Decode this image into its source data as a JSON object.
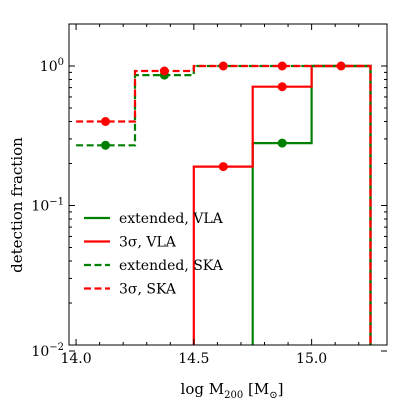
{
  "chart_data": {
    "type": "line",
    "xlabel": "log M₂₀₀ [M☉]",
    "xlabel_main": "log M",
    "xlabel_sub": "200",
    "xlabel_unit_open": " [M",
    "xlabel_unit_sub": "⊙",
    "xlabel_unit_close": "]",
    "ylabel": "detection fraction",
    "xlim": [
      13.97,
      15.32
    ],
    "ylim": [
      0.01,
      2.0
    ],
    "yscale": "log",
    "x_ticks": [
      14.0,
      14.5,
      15.0
    ],
    "x_tick_labels": [
      "14.0",
      "14.5",
      "15.0"
    ],
    "y_ticks": [
      0.01,
      0.1,
      1.0
    ],
    "y_tick_labels": [
      {
        "base": "10",
        "exp": "−2"
      },
      {
        "base": "10",
        "exp": "−1"
      },
      {
        "base": "10",
        "exp": "0"
      }
    ],
    "legend_position": "lower-left",
    "bin_edges": [
      14.0,
      14.25,
      14.5,
      14.75,
      15.0,
      15.25
    ],
    "bin_centers": [
      14.125,
      14.375,
      14.625,
      14.875,
      15.125
    ],
    "series": [
      {
        "name": "extended, VLA",
        "legend_main": "extended, VLA",
        "color": "#008000",
        "dashed": false,
        "values": [
          0.0,
          0.0,
          0.0,
          0.28,
          1.0
        ],
        "markers": [
          null,
          null,
          null,
          0.28,
          null
        ]
      },
      {
        "name": "3σ, VLA",
        "legend_main": "3σ, VLA",
        "color": "#ff0000",
        "dashed": false,
        "values": [
          0.0,
          0.0,
          0.19,
          0.71,
          1.0
        ],
        "markers": [
          null,
          null,
          0.19,
          0.71,
          1.0
        ]
      },
      {
        "name": "extended, SKA",
        "legend_main": "extended, SKA",
        "color": "#008000",
        "dashed": true,
        "values": [
          0.27,
          0.86,
          1.0,
          1.0,
          1.0
        ],
        "markers": [
          0.27,
          0.86,
          null,
          null,
          null
        ]
      },
      {
        "name": "3σ, SKA",
        "legend_main": "3σ, SKA",
        "color": "#ff0000",
        "dashed": true,
        "values": [
          0.4,
          0.92,
          1.0,
          1.0,
          1.0
        ],
        "markers": [
          0.4,
          0.92,
          1.0,
          1.0,
          null
        ]
      }
    ]
  }
}
